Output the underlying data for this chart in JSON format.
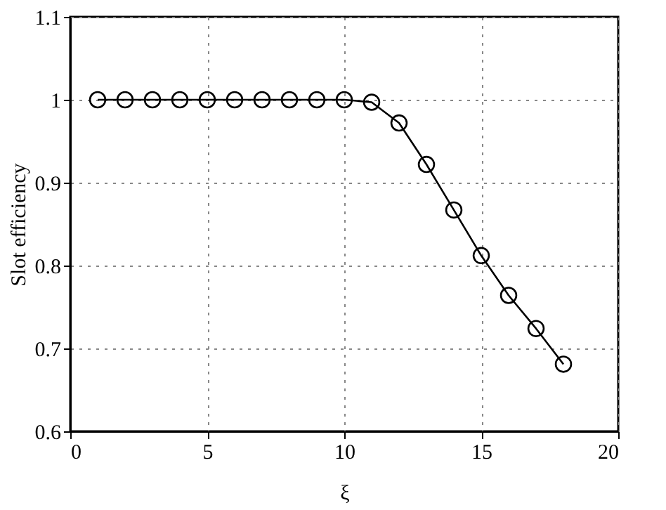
{
  "chart_data": {
    "type": "line",
    "xlabel": "ξ",
    "ylabel": "Slot efficiency",
    "x": [
      1,
      2,
      3,
      4,
      5,
      6,
      7,
      8,
      9,
      10,
      11,
      12,
      13,
      14,
      15,
      16,
      17,
      18
    ],
    "series": [
      {
        "color": "#000000",
        "values": [
          1,
          1,
          1,
          1,
          1,
          1,
          1,
          1,
          1,
          1,
          0.997,
          0.972,
          0.922,
          0.867,
          0.812,
          0.764,
          0.724,
          0.681
        ]
      }
    ],
    "xlim": [
      0,
      20
    ],
    "xticks": [
      0,
      5,
      10,
      15,
      20
    ],
    "ylim": [
      0.6,
      1.1
    ],
    "yticks": [
      0.6,
      0.7,
      0.8,
      0.9,
      1,
      1.1
    ],
    "grid": true,
    "marker": "circle",
    "line_style": "solid"
  }
}
